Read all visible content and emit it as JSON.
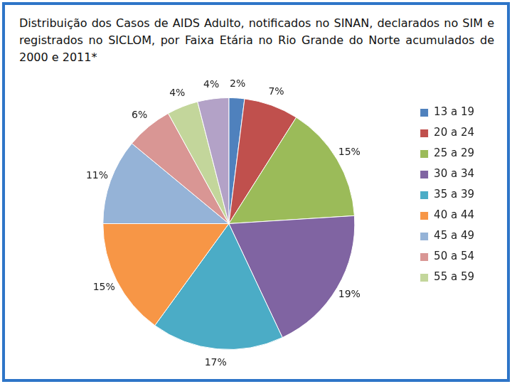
{
  "chart_data": {
    "type": "pie",
    "title": "Distribuição dos Casos de AIDS Adulto, notificados no SINAN, declarados no SIM e registrados no SICLOM, por Faixa Etária no Rio Grande do Norte acumulados de 2000 e 2011*",
    "categories": [
      "13 a 19",
      "20 a 24",
      "25 a 29",
      "30 a 34",
      "35 a 39",
      "40 a 44",
      "45 a 49",
      "50 a 54",
      "55 a 59",
      null
    ],
    "values": [
      2,
      7,
      15,
      19,
      17,
      15,
      11,
      6,
      4,
      4
    ],
    "value_labels": [
      "2%",
      "7%",
      "15%",
      "19%",
      "17%",
      "15%",
      "11%",
      "6%",
      "4%",
      "4%"
    ],
    "colors": [
      "#4f81bd",
      "#c0504d",
      "#9bbb59",
      "#8064a2",
      "#4bacc6",
      "#f79646",
      "#95b3d7",
      "#d99694",
      "#c3d69b",
      "#b3a2c7"
    ],
    "legend": "right",
    "data_labels": true
  }
}
